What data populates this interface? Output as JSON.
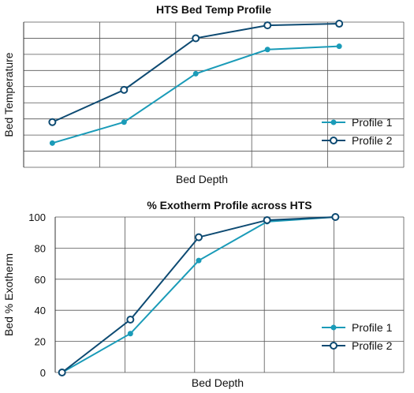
{
  "chart_data": [
    {
      "type": "line",
      "title": "HTS Bed Temp Profile",
      "xlabel": "Bed Depth",
      "ylabel": "Bed Temperature",
      "grid": true,
      "legend_position": "bottom-right",
      "x": [
        1,
        2,
        3,
        4,
        5
      ],
      "xlim": [
        0.6,
        5.9
      ],
      "ylim": [
        0,
        9
      ],
      "y_ticks_labeled": false,
      "series": [
        {
          "name": "Profile 1",
          "values": [
            1.5,
            2.8,
            5.8,
            7.3,
            7.5
          ],
          "color": "#1a9bb8",
          "marker": "filled"
        },
        {
          "name": "Profile 2",
          "values": [
            2.8,
            4.8,
            8.0,
            8.8,
            8.9
          ],
          "color": "#0d4a72",
          "marker": "hollow"
        }
      ]
    },
    {
      "type": "line",
      "title": "% Exotherm Profile across HTS",
      "xlabel": "Bed Depth",
      "ylabel": "Bed % Exotherm",
      "grid": true,
      "legend_position": "bottom-right",
      "x": [
        0,
        1,
        2,
        3,
        4
      ],
      "xlim": [
        -0.1,
        5
      ],
      "ylim": [
        0,
        100
      ],
      "y_ticks": [
        "0",
        "20",
        "40",
        "60",
        "80",
        "100"
      ],
      "series": [
        {
          "name": "Profile 1",
          "values": [
            0,
            25,
            72,
            97,
            100
          ],
          "color": "#1a9bb8",
          "marker": "filled"
        },
        {
          "name": "Profile 2",
          "values": [
            0,
            34,
            87,
            98,
            100
          ],
          "color": "#0d4a72",
          "marker": "hollow"
        }
      ]
    }
  ]
}
